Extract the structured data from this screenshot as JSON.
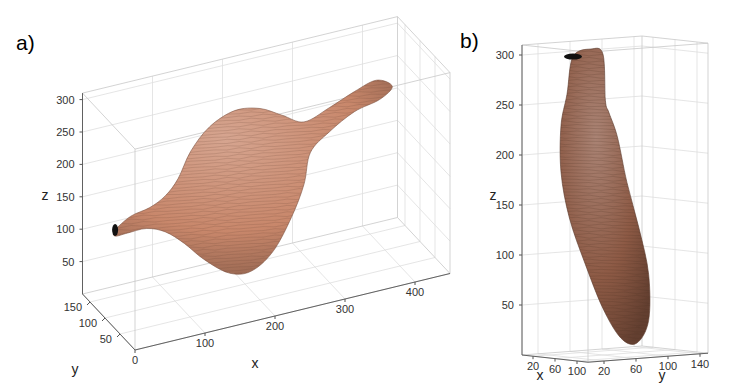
{
  "chart_data": [
    {
      "type": "surface3d",
      "title": "a)",
      "x_label": "x",
      "y_label": "y",
      "z_label": "z",
      "xlim": [
        0,
        450
      ],
      "ylim": [
        0,
        175
      ],
      "zlim": [
        0,
        310
      ],
      "xticks": [
        0,
        100,
        200,
        300,
        400
      ],
      "yticks": [
        50,
        100,
        150
      ],
      "zticks": [
        50,
        100,
        150,
        200,
        250,
        300
      ],
      "grid": true,
      "color": "#c8876b"
    },
    {
      "type": "surface3d",
      "title": "b)",
      "x_label": "x",
      "y_label": "y",
      "z_label": "z",
      "xlim": [
        0,
        120
      ],
      "ylim": [
        0,
        150
      ],
      "zlim": [
        0,
        310
      ],
      "xticks": [
        20,
        60,
        100
      ],
      "yticks": [
        20,
        60,
        100,
        140
      ],
      "zticks": [
        50,
        100,
        150,
        200,
        250,
        300
      ],
      "grid": true,
      "color": "#8d5a45"
    }
  ]
}
